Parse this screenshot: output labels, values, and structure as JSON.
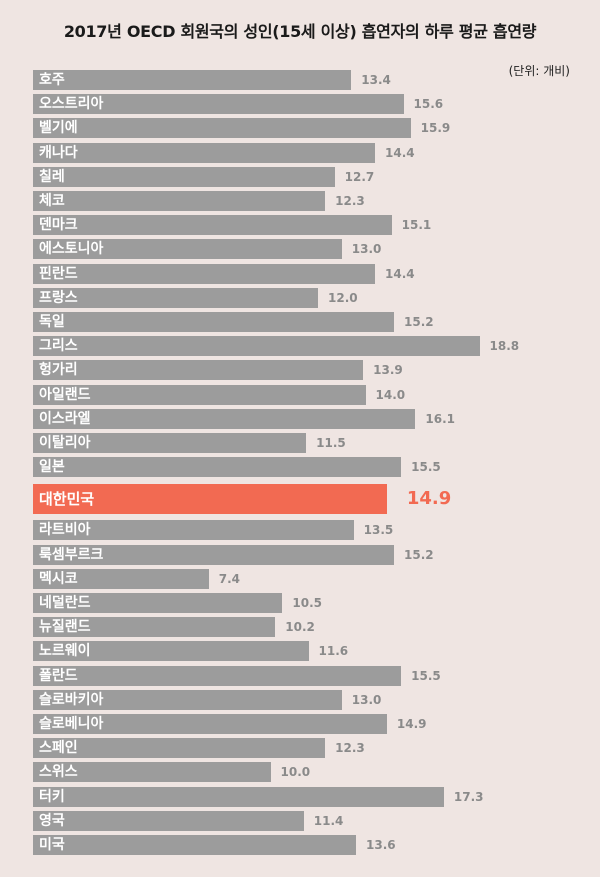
{
  "header": {
    "title": "2017년 OECD 회원국의 성인(15세 이상) 흡연자의 하루 평균 흡연량",
    "unit": "(단위: 개비)"
  },
  "colors": {
    "background": "#efe5e2",
    "bar": "#9c9c9c",
    "highlight": "#f26a52"
  },
  "chart_data": {
    "type": "bar",
    "orientation": "horizontal",
    "title": "2017년 OECD 회원국의 성인(15세 이상) 흡연자의 하루 평균 흡연량",
    "unit": "(단위: 개비)",
    "highlight": "대한민국",
    "categories": [
      "호주",
      "오스트리아",
      "벨기에",
      "캐나다",
      "칠레",
      "체코",
      "덴마크",
      "에스토니아",
      "핀란드",
      "프랑스",
      "독일",
      "그리스",
      "헝가리",
      "아일랜드",
      "이스라엘",
      "이탈리아",
      "일본",
      "대한민국",
      "라트비아",
      "룩셈부르크",
      "멕시코",
      "네덜란드",
      "뉴질랜드",
      "노르웨이",
      "폴란드",
      "슬로바키아",
      "슬로베니아",
      "스페인",
      "스위스",
      "터키",
      "영국",
      "미국"
    ],
    "values": [
      "13.4",
      "15.6",
      "15.9",
      "14.4",
      "12.7",
      "12.3",
      "15.1",
      "13.0",
      "14.4",
      "12.0",
      "15.2",
      "18.8",
      "13.9",
      "14.0",
      "16.1",
      "11.5",
      "15.5",
      "14.9",
      "13.5",
      "15.2",
      "7.4",
      "10.5",
      "10.2",
      "11.6",
      "15.5",
      "13.0",
      "14.9",
      "12.3",
      "10.0",
      "17.3",
      "11.4",
      "13.6"
    ]
  }
}
